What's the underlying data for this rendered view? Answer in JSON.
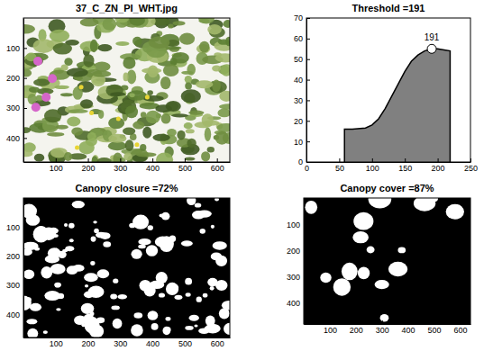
{
  "chart_data": [
    {
      "type": "image",
      "title": "37_C_ZN_PI_WHT.jpg",
      "xlim": [
        0,
        640
      ],
      "ylim": [
        480,
        0
      ],
      "xticks": [
        100,
        200,
        300,
        400,
        500,
        600
      ],
      "yticks": [
        100,
        200,
        300,
        400
      ]
    },
    {
      "type": "area",
      "title": "Threshold =191",
      "x": [
        58,
        58,
        70,
        90,
        100,
        110,
        120,
        130,
        140,
        150,
        160,
        170,
        180,
        190,
        200,
        210,
        219,
        219
      ],
      "values": [
        0,
        16,
        16,
        16.5,
        18,
        21,
        26,
        32,
        38,
        44,
        49,
        52,
        54,
        55,
        55,
        54.5,
        54,
        0
      ],
      "color": "#808080",
      "xlim": [
        0,
        250
      ],
      "ylim": [
        0,
        70
      ],
      "xticks": [
        0,
        50,
        100,
        150,
        200,
        250
      ],
      "yticks": [
        0,
        10,
        20,
        30,
        40,
        50,
        60,
        70
      ],
      "annotations": [
        {
          "text": "191",
          "x": 191,
          "y": 55
        }
      ]
    },
    {
      "type": "binary_image",
      "title": "Canopy closure =72%",
      "xlim": [
        0,
        640
      ],
      "ylim": [
        480,
        0
      ],
      "xticks": [
        100,
        200,
        300,
        400,
        500,
        600
      ],
      "yticks": [
        100,
        200,
        300,
        400
      ]
    },
    {
      "type": "binary_image",
      "title": "Canopy cover =87%",
      "xlim": [
        0,
        640
      ],
      "ylim": [
        480,
        0
      ],
      "xticks": [
        100,
        200,
        300,
        400,
        500,
        600
      ],
      "yticks": [
        100,
        200,
        300,
        400
      ]
    }
  ]
}
